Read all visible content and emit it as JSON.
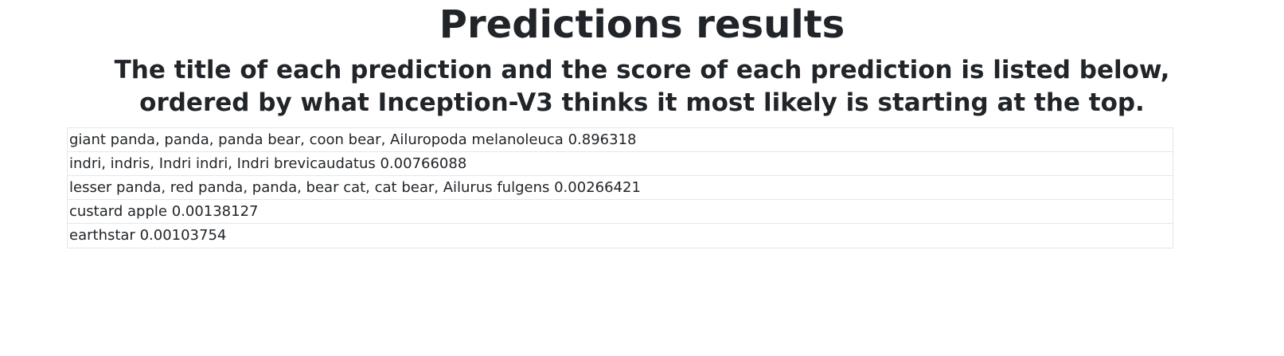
{
  "page": {
    "title": "Predictions results",
    "subtitle": "The title of each prediction and the score of each prediction is listed below, ordered by what Inception-V3 thinks it most likely is starting at the top."
  },
  "predictions": [
    {
      "label": "giant panda, panda, panda bear, coon bear, Ailuropoda melanoleuca",
      "score": "0.896318"
    },
    {
      "label": "indri, indris, Indri indri, Indri brevicaudatus",
      "score": "0.00766088"
    },
    {
      "label": "lesser panda, red panda, panda, bear cat, cat bear, Ailurus fulgens",
      "score": "0.00266421"
    },
    {
      "label": "custard apple",
      "score": "0.00138127"
    },
    {
      "label": "earthstar",
      "score": "0.00103754"
    }
  ]
}
